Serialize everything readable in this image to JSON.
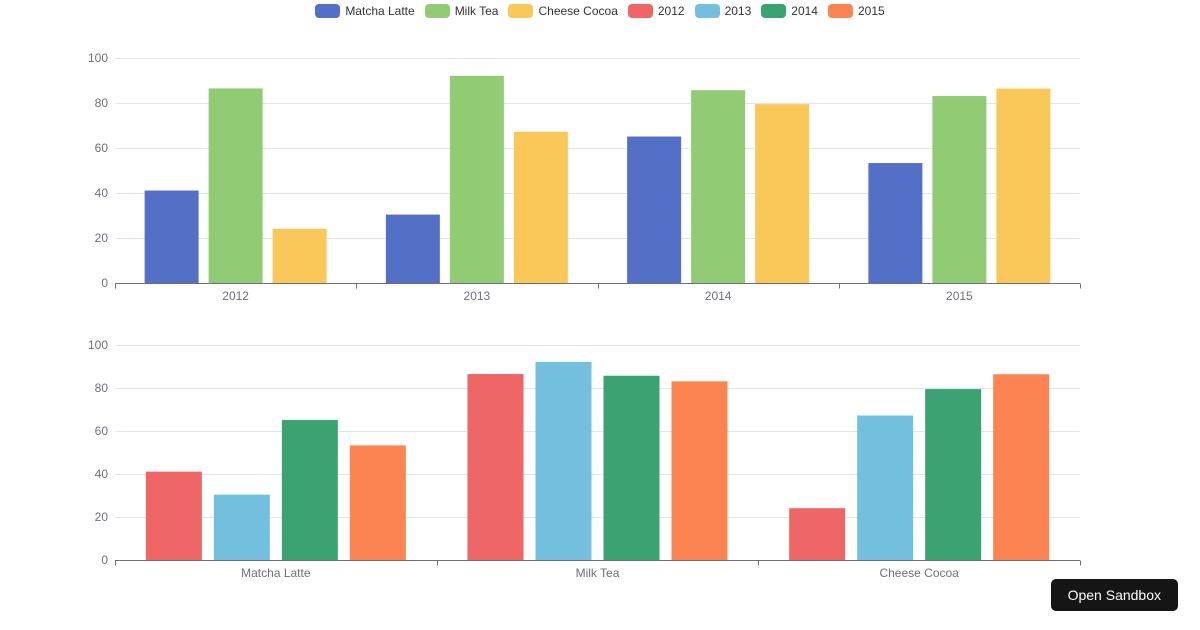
{
  "style": {
    "background": "#ffffff",
    "axis_label_color": "#6E7079",
    "axis_line_color": "#6E7079",
    "grid_line_color": "#E0E6F1",
    "legend_text_color": "#333333"
  },
  "legend": {
    "items": [
      {
        "label": "Matcha Latte",
        "color": "#5470C6"
      },
      {
        "label": "Milk Tea",
        "color": "#91CC75"
      },
      {
        "label": "Cheese Cocoa",
        "color": "#FAC858"
      },
      {
        "label": "2012",
        "color": "#EE6666"
      },
      {
        "label": "2013",
        "color": "#73C0DE"
      },
      {
        "label": "2014",
        "color": "#3BA272"
      },
      {
        "label": "2015",
        "color": "#FC8452"
      }
    ]
  },
  "chart_data": [
    {
      "type": "bar",
      "categories": [
        "2012",
        "2013",
        "2014",
        "2015"
      ],
      "series": [
        {
          "name": "Matcha Latte",
          "color": "#5470C6",
          "values": [
            41.1,
            30.4,
            65.1,
            53.3
          ]
        },
        {
          "name": "Milk Tea",
          "color": "#91CC75",
          "values": [
            86.5,
            92.1,
            85.7,
            83.1
          ]
        },
        {
          "name": "Cheese Cocoa",
          "color": "#FAC858",
          "values": [
            24.1,
            67.2,
            79.5,
            86.4
          ]
        }
      ],
      "ylim": [
        0,
        100
      ],
      "yticks": [
        0,
        20,
        40,
        60,
        80,
        100
      ],
      "grid": true,
      "legend_position": "top"
    },
    {
      "type": "bar",
      "categories": [
        "Matcha Latte",
        "Milk Tea",
        "Cheese Cocoa"
      ],
      "series": [
        {
          "name": "2012",
          "color": "#EE6666",
          "values": [
            41.1,
            86.5,
            24.1
          ]
        },
        {
          "name": "2013",
          "color": "#73C0DE",
          "values": [
            30.4,
            92.1,
            67.2
          ]
        },
        {
          "name": "2014",
          "color": "#3BA272",
          "values": [
            65.1,
            85.7,
            79.5
          ]
        },
        {
          "name": "2015",
          "color": "#FC8452",
          "values": [
            53.3,
            83.1,
            86.4
          ]
        }
      ],
      "ylim": [
        0,
        100
      ],
      "yticks": [
        0,
        20,
        40,
        60,
        80,
        100
      ],
      "grid": true,
      "legend_position": "top"
    }
  ],
  "button": {
    "label": "Open Sandbox",
    "background_color": "#151515",
    "text_color": "#FFFFFF"
  }
}
